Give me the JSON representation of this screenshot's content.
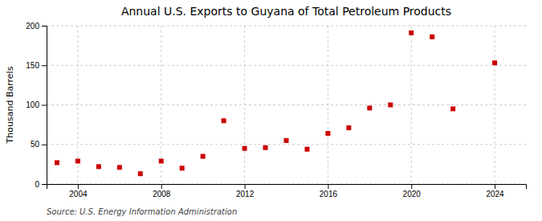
{
  "chart_data": {
    "type": "scatter",
    "title": "Annual U.S. Exports to Guyana of Total Petroleum Products",
    "y_label": "Thousand Barrels",
    "source": "Source: U.S. Energy Information Administration",
    "x": [
      2003,
      2004,
      2005,
      2006,
      2007,
      2008,
      2009,
      2010,
      2011,
      2012,
      2013,
      2014,
      2015,
      2016,
      2017,
      2018,
      2019,
      2020,
      2021,
      2022,
      2024
    ],
    "values": [
      27,
      29,
      22,
      21,
      13,
      29,
      20,
      35,
      80,
      45,
      46,
      55,
      44,
      64,
      71,
      96,
      100,
      191,
      186,
      95,
      153
    ],
    "xlim": [
      2002.5,
      2025.5
    ],
    "ylim": [
      0,
      200
    ],
    "xticks": [
      2004,
      2008,
      2012,
      2016,
      2020,
      2024
    ],
    "yticks": [
      0,
      50,
      100,
      150,
      200
    ],
    "color": "#cc0000",
    "marker": "square",
    "grid": true
  }
}
